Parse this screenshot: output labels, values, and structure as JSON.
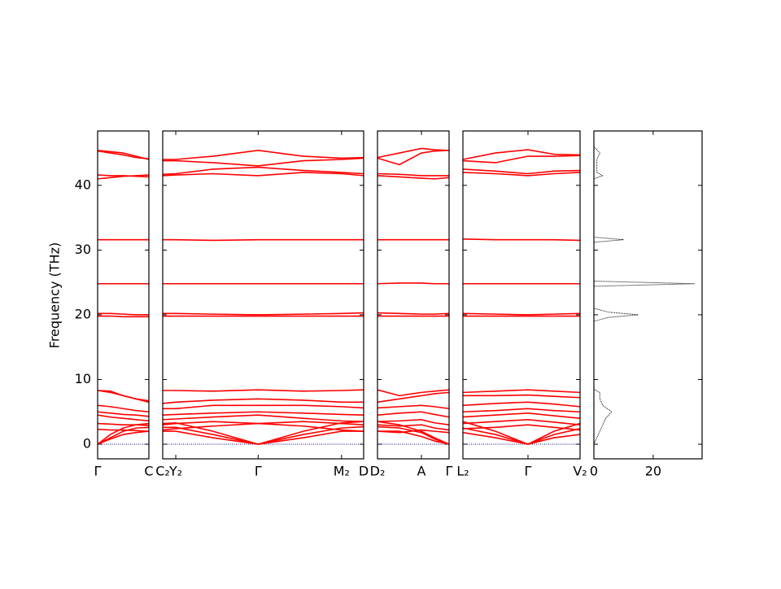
{
  "chart_data": {
    "type": "band_structure",
    "ylabel": "Frequency (THz)",
    "ylim": [
      -2.26,
      48.4
    ],
    "yticks": [
      0,
      10,
      20,
      30,
      40
    ],
    "band_color": "#ff0000",
    "zero_line_color": "#000080",
    "panels": [
      {
        "xlim": [
          0,
          1
        ],
        "xticks": [
          {
            "value": 0,
            "label": "Γ"
          },
          {
            "value": 1,
            "label": "C"
          }
        ],
        "x": [
          0,
          0.25,
          0.5,
          0.75,
          1
        ],
        "bands": [
          [
            0,
            1.5,
            2.5,
            3,
            3.2
          ],
          [
            0,
            1,
            2,
            2.5,
            2.6
          ],
          [
            0,
            0.8,
            1.5,
            1.8,
            2
          ],
          [
            8.3,
            8.2,
            7.5,
            7,
            6.5
          ],
          [
            8.3,
            8,
            7.5,
            7,
            6.7
          ],
          [
            6,
            5.8,
            5.5,
            5.2,
            5
          ],
          [
            5,
            4.8,
            4.6,
            4.5,
            4.3
          ],
          [
            4.5,
            4.2,
            4,
            3.8,
            3.6
          ],
          [
            3.2,
            3.1,
            3,
            3,
            2.9
          ],
          [
            2.3,
            2.2,
            2.2,
            2.1,
            2
          ],
          [
            20.2,
            20.2,
            20.1,
            20,
            20
          ],
          [
            19.8,
            19.8,
            19.7,
            19.7,
            19.7
          ],
          [
            24.8,
            24.8,
            24.8,
            24.8,
            24.8
          ],
          [
            31.6,
            31.6,
            31.6,
            31.6,
            31.6
          ],
          [
            41,
            41.2,
            41.4,
            41.5,
            41.6
          ],
          [
            41.6,
            41.5,
            41.5,
            41.4,
            41.3
          ],
          [
            45.4,
            45.2,
            45,
            44.5,
            44
          ],
          [
            45.3,
            45,
            44.7,
            44.3,
            44.1
          ]
        ]
      },
      {
        "xlim": [
          0,
          4
        ],
        "xticks": [
          {
            "value": 0,
            "label": "C₂"
          },
          {
            "value": 0.26,
            "label": "Y₂"
          },
          {
            "value": 1.9,
            "label": "Γ"
          },
          {
            "value": 3.56,
            "label": "M₂"
          },
          {
            "value": 4,
            "label": "D"
          }
        ],
        "x": [
          0,
          0.26,
          1,
          1.9,
          2.8,
          3.56,
          4
        ],
        "bands": [
          [
            3.2,
            3.3,
            2,
            0,
            2,
            3.3,
            3.5
          ],
          [
            2.6,
            2.6,
            1.5,
            0,
            1.5,
            2.5,
            2.7
          ],
          [
            2,
            2,
            1,
            0,
            1,
            2,
            2
          ],
          [
            8.3,
            8.3,
            8.2,
            8.4,
            8.2,
            8.3,
            8.4
          ],
          [
            6.3,
            6.5,
            6.8,
            7,
            6.8,
            6.5,
            6.5
          ],
          [
            5.5,
            5.5,
            6,
            6,
            6,
            5.8,
            5.6
          ],
          [
            4.5,
            4.6,
            4.8,
            5,
            4.8,
            4.6,
            4.5
          ],
          [
            3.8,
            3.9,
            4.2,
            4.5,
            4,
            3.6,
            3.5
          ],
          [
            3,
            3.2,
            3.5,
            3.2,
            3.5,
            3.2,
            3
          ],
          [
            2.2,
            2.4,
            2.8,
            3.2,
            2.8,
            2.2,
            2
          ],
          [
            20.2,
            20.2,
            20.1,
            20,
            20.1,
            20.2,
            20.3
          ],
          [
            19.8,
            19.8,
            19.8,
            19.8,
            19.8,
            19.8,
            19.8
          ],
          [
            24.8,
            24.8,
            24.8,
            24.8,
            24.8,
            24.8,
            24.8
          ],
          [
            31.6,
            31.6,
            31.5,
            31.6,
            31.6,
            31.6,
            31.6
          ],
          [
            41.5,
            41.6,
            41.8,
            41.5,
            42,
            41.8,
            41.5
          ],
          [
            41.7,
            41.8,
            42.5,
            42.8,
            42.3,
            42,
            41.8
          ],
          [
            43.8,
            43.8,
            43.5,
            43,
            43.8,
            44,
            44.2
          ],
          [
            44,
            44,
            44.5,
            45.4,
            44.5,
            44.2,
            44.3
          ]
        ]
      },
      {
        "xlim": [
          0,
          1.63
        ],
        "xticks": [
          {
            "value": 0,
            "label": "D₂"
          },
          {
            "value": 1,
            "label": "A"
          },
          {
            "value": 1.63,
            "label": "Γ"
          }
        ],
        "x": [
          0,
          0.5,
          1,
          1.3,
          1.63
        ],
        "bands": [
          [
            3.5,
            3,
            2,
            1,
            0
          ],
          [
            2.7,
            2.5,
            1.8,
            0.8,
            0
          ],
          [
            2,
            2,
            1.2,
            0.5,
            0
          ],
          [
            8.4,
            7.5,
            8,
            8.2,
            8.4
          ],
          [
            6.5,
            7,
            7.5,
            7.8,
            8
          ],
          [
            5.6,
            5.8,
            6,
            5.8,
            5.5
          ],
          [
            4.5,
            4.8,
            5,
            4.6,
            4.2
          ],
          [
            3.5,
            3.6,
            3.8,
            3.3,
            3
          ],
          [
            3,
            2.8,
            3,
            2.5,
            2.2
          ],
          [
            2,
            1.8,
            2.2,
            2,
            1.8
          ],
          [
            20.3,
            20.2,
            20.1,
            20.1,
            20.2
          ],
          [
            19.8,
            19.8,
            19.8,
            19.8,
            19.8
          ],
          [
            24.8,
            24.9,
            24.9,
            24.8,
            24.8
          ],
          [
            31.6,
            31.6,
            31.6,
            31.6,
            31.6
          ],
          [
            41.5,
            41.3,
            41.1,
            41,
            41.2
          ],
          [
            41.8,
            41.7,
            41.5,
            41.5,
            41.5
          ],
          [
            44.2,
            43.2,
            45,
            45.3,
            45.4
          ],
          [
            44.3,
            45,
            45.7,
            45.5,
            45.4
          ]
        ]
      },
      {
        "xlim": [
          0,
          1.8
        ],
        "xticks": [
          {
            "value": 0,
            "label": "L₂"
          },
          {
            "value": 1,
            "label": "Γ"
          },
          {
            "value": 1.8,
            "label": "V₂"
          }
        ],
        "x": [
          0,
          0.5,
          1,
          1.4,
          1.8
        ],
        "bands": [
          [
            3.5,
            2,
            0,
            2,
            3.2
          ],
          [
            2.5,
            1.5,
            0,
            1.5,
            2.4
          ],
          [
            1.8,
            1,
            0,
            1,
            1.5
          ],
          [
            8,
            8.2,
            8.4,
            8.2,
            8
          ],
          [
            7.5,
            7.5,
            7.6,
            7.4,
            7.2
          ],
          [
            6,
            6.3,
            6.5,
            6.2,
            5.8
          ],
          [
            5,
            5.2,
            5.5,
            5.2,
            5
          ],
          [
            4.2,
            4.5,
            4.8,
            4.4,
            4
          ],
          [
            3.2,
            3.5,
            3.8,
            3.4,
            3
          ],
          [
            2.4,
            2.6,
            3,
            2.6,
            2.2
          ],
          [
            20.2,
            20.1,
            20,
            20.1,
            20.2
          ],
          [
            19.8,
            19.8,
            19.8,
            19.8,
            19.8
          ],
          [
            24.8,
            24.8,
            24.8,
            24.8,
            24.8
          ],
          [
            31.7,
            31.6,
            31.6,
            31.6,
            31.5
          ],
          [
            42,
            41.8,
            41.5,
            41.8,
            42
          ],
          [
            42.5,
            42.2,
            41.8,
            42.2,
            42.3
          ],
          [
            43.8,
            43.5,
            44.5,
            44.5,
            44.6
          ],
          [
            44,
            45,
            45.5,
            44.8,
            44.7
          ]
        ]
      }
    ],
    "dos": {
      "xlim": [
        0,
        36.5
      ],
      "xticks": [
        0,
        20
      ],
      "color": "#000000",
      "frequency": [
        0,
        1,
        2,
        3,
        4,
        5,
        6,
        7,
        8,
        8.5,
        19,
        19.6,
        20,
        20.4,
        21,
        24.4,
        24.8,
        25.2,
        31.2,
        31.6,
        32,
        41,
        41.5,
        42,
        44,
        45,
        46
      ],
      "values": [
        0,
        1,
        2,
        3,
        4,
        6,
        3,
        2,
        2,
        0,
        0,
        5,
        15,
        5,
        0,
        0,
        34,
        0,
        0,
        10,
        0,
        0,
        3,
        1,
        1,
        2,
        0
      ]
    }
  }
}
